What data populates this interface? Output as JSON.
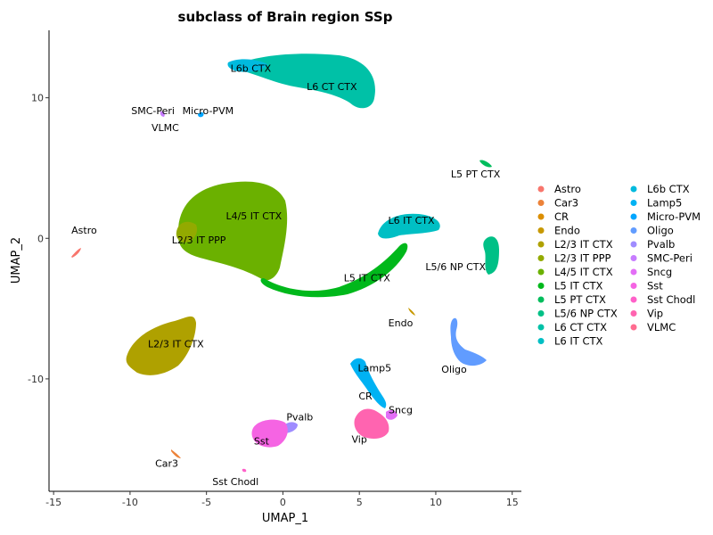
{
  "chart_data": {
    "type": "scatter",
    "title": "subclass of Brain region SSp",
    "xlabel": "UMAP_1",
    "ylabel": "UMAP_2",
    "xlim": [
      -15.3,
      15.6
    ],
    "ylim": [
      -18.0,
      14.8
    ],
    "xticks": [
      -15,
      -10,
      -5,
      0,
      5,
      10,
      15
    ],
    "yticks": [
      -10,
      0,
      10
    ],
    "grid": false,
    "legend_position": "right",
    "legend_columns": 2,
    "legend": [
      {
        "name": "Astro",
        "color": "#F8766D"
      },
      {
        "name": "Car3",
        "color": "#EC8239"
      },
      {
        "name": "CR",
        "color": "#DB8E00"
      },
      {
        "name": "Endo",
        "color": "#C79800"
      },
      {
        "name": "L2/3 IT CTX",
        "color": "#AFA100"
      },
      {
        "name": "L2/3 IT PPP",
        "color": "#93AA00"
      },
      {
        "name": "L4/5 IT CTX",
        "color": "#6BB100"
      },
      {
        "name": "L5 IT CTX",
        "color": "#00B81B"
      },
      {
        "name": "L5 PT CTX",
        "color": "#00BD5C"
      },
      {
        "name": "L5/6 NP CTX",
        "color": "#00C086"
      },
      {
        "name": "L6 CT CTX",
        "color": "#00C1A7"
      },
      {
        "name": "L6 IT CTX",
        "color": "#00BFC4"
      },
      {
        "name": "L6b CTX",
        "color": "#00BADE"
      },
      {
        "name": "Lamp5",
        "color": "#00B2F3"
      },
      {
        "name": "Micro-PVM",
        "color": "#00A6FF"
      },
      {
        "name": "Oligo",
        "color": "#619CFF"
      },
      {
        "name": "Pvalb",
        "color": "#9F8CFF"
      },
      {
        "name": "SMC-Peri",
        "color": "#C77CFF"
      },
      {
        "name": "Sncg",
        "color": "#E36EF6"
      },
      {
        "name": "Sst",
        "color": "#F564E3"
      },
      {
        "name": "Sst Chodl",
        "color": "#FF61C9"
      },
      {
        "name": "Vip",
        "color": "#FF64B0"
      },
      {
        "name": "VLMC",
        "color": "#FF6C90"
      }
    ],
    "clusters": [
      {
        "label": "L6b CTX",
        "x": 2.5,
        "y": 12.0,
        "color": "#00BADE",
        "label_x": -2.1,
        "label_y": 12.1
      },
      {
        "label": "L6 CT CTX",
        "x": 3.5,
        "y": 11.2,
        "color": "#00C1A7",
        "label_x": 3.2,
        "label_y": 10.8
      },
      {
        "label": "SMC-Peri",
        "x": -7.9,
        "y": 8.8,
        "color": "#C77CFF",
        "label_x": -8.5,
        "label_y": 9.1
      },
      {
        "label": "Micro-PVM",
        "x": -5.4,
        "y": 8.8,
        "color": "#00A6FF",
        "label_x": -4.9,
        "label_y": 9.1
      },
      {
        "label": "VLMC",
        "x": -7.9,
        "y": 8.6,
        "color": "#FF6C90",
        "label_x": -7.7,
        "label_y": 7.9
      },
      {
        "label": "L5 PT CTX",
        "x": 13.2,
        "y": 5.2,
        "color": "#00BD5C",
        "label_x": 12.6,
        "label_y": 4.6
      },
      {
        "label": "L4/5 IT CTX",
        "x": -2.0,
        "y": 1.5,
        "color": "#6BB100",
        "label_x": -1.9,
        "label_y": 1.6
      },
      {
        "label": "L2/3 IT PPP",
        "x": -5.5,
        "y": -0.2,
        "color": "#93AA00",
        "label_x": -5.5,
        "label_y": -0.1
      },
      {
        "label": "L6 IT CTX",
        "x": 8.5,
        "y": 1.0,
        "color": "#00BFC4",
        "label_x": 8.4,
        "label_y": 1.3
      },
      {
        "label": "L5/6 NP CTX",
        "x": 13.4,
        "y": -1.5,
        "color": "#00C086",
        "label_x": 11.3,
        "label_y": -2.0
      },
      {
        "label": "L5 IT CTX",
        "x": 5.5,
        "y": -2.5,
        "color": "#00B81B",
        "label_x": 5.5,
        "label_y": -2.8
      },
      {
        "label": "Astro",
        "x": -13.6,
        "y": -1.2,
        "color": "#F8766D",
        "label_x": -13.0,
        "label_y": 0.6
      },
      {
        "label": "Endo",
        "x": 8.5,
        "y": -5.4,
        "color": "#C79800",
        "label_x": 7.7,
        "label_y": -6.0
      },
      {
        "label": "L2/3 IT CTX",
        "x": -8.0,
        "y": -8.0,
        "color": "#AFA100",
        "label_x": -7.0,
        "label_y": -7.5
      },
      {
        "label": "Oligo",
        "x": 12.0,
        "y": -8.0,
        "color": "#619CFF",
        "label_x": 11.2,
        "label_y": -9.3
      },
      {
        "label": "Lamp5",
        "x": 5.3,
        "y": -9.3,
        "color": "#00B2F3",
        "label_x": 6.0,
        "label_y": -9.2
      },
      {
        "label": "CR",
        "x": 5.6,
        "y": -11.2,
        "color": "#DB8E00",
        "label_x": 5.4,
        "label_y": -11.2
      },
      {
        "label": "Pvalb",
        "x": 0.6,
        "y": -13.2,
        "color": "#9F8CFF",
        "label_x": 1.1,
        "label_y": -12.7
      },
      {
        "label": "Sncg",
        "x": 7.2,
        "y": -12.8,
        "color": "#E36EF6",
        "label_x": 7.7,
        "label_y": -12.2
      },
      {
        "label": "Sst",
        "x": -0.7,
        "y": -14.0,
        "color": "#F564E3",
        "label_x": -1.4,
        "label_y": -14.4
      },
      {
        "label": "Vip",
        "x": 5.3,
        "y": -13.8,
        "color": "#FF64B0",
        "label_x": 5.0,
        "label_y": -14.3
      },
      {
        "label": "Car3",
        "x": -7.1,
        "y": -15.4,
        "color": "#EC8239",
        "label_x": -7.6,
        "label_y": -16.0
      },
      {
        "label": "Sst Chodl",
        "x": -2.5,
        "y": -16.5,
        "color": "#FF61C9",
        "label_x": -3.1,
        "label_y": -17.3
      }
    ]
  }
}
